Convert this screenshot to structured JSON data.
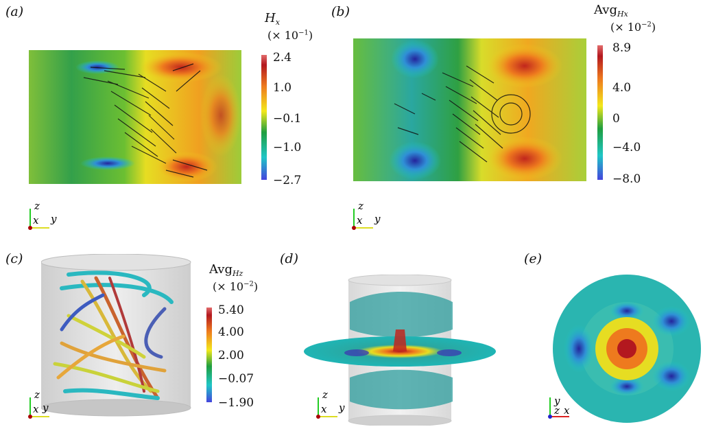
{
  "panels": {
    "a": {
      "label": "(a)",
      "cb_title": "H",
      "cb_sub": "x",
      "cb_mult": "(× 10",
      "cb_exp": "−1",
      "cb_close": ")",
      "ticks": [
        "2.4",
        "1.0",
        "−0.1",
        "−1.0",
        "−2.7"
      ]
    },
    "b": {
      "label": "(b)",
      "cb_title": "Avg",
      "cb_sub": "Hx",
      "cb_mult": "(× 10",
      "cb_exp": "−2",
      "cb_close": ")",
      "ticks": [
        "8.9",
        "4.0",
        "0",
        "−4.0",
        "−8.0"
      ]
    },
    "c": {
      "label": "(c)",
      "cb_title": "Avg",
      "cb_sub": "Hz",
      "cb_mult": "(× 10",
      "cb_exp": "−2",
      "cb_close": ")",
      "ticks": [
        "5.40",
        "4.00",
        "2.00",
        "−0.07",
        "−1.90"
      ]
    },
    "d": {
      "label": "(d)"
    },
    "e": {
      "label": "(e)"
    }
  },
  "axes": {
    "a": {
      "up": "z",
      "left": "x",
      "right": "y"
    },
    "b": {
      "up": "z",
      "left": "x",
      "right": "y"
    },
    "c": {
      "up": "z",
      "left": "x",
      "right": "y"
    },
    "d": {
      "up": "z",
      "left": "x",
      "right": "y"
    },
    "e": {
      "up": "y",
      "left": "z",
      "right": "x"
    }
  },
  "colormap": [
    "#3b4cc0",
    "#1ec9c9",
    "#22a04a",
    "#f2e41d",
    "#ee7a1e",
    "#b2182b",
    "#e67a7a"
  ]
}
